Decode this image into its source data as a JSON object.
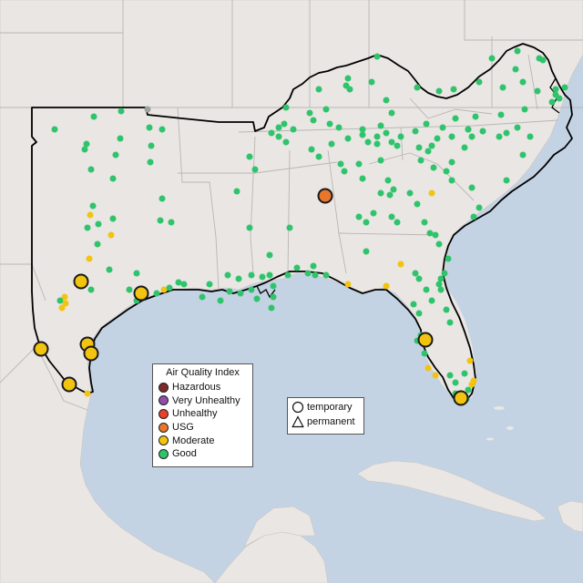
{
  "legend": {
    "title": "Air Quality Index",
    "categories": [
      {
        "label": "Hazardous",
        "color": "#7e2a2a"
      },
      {
        "label": "Very Unhealthy",
        "color": "#8f4fa8"
      },
      {
        "label": "Unhealthy",
        "color": "#e8412c"
      },
      {
        "label": "USG",
        "color": "#e8762c"
      },
      {
        "label": "Moderate",
        "color": "#f2c40f"
      },
      {
        "label": "Good",
        "color": "#2fc46c"
      }
    ]
  },
  "shape_legend": {
    "items": [
      {
        "label": "temporary",
        "shape": "circle-icon"
      },
      {
        "label": "permanent",
        "shape": "triangle-icon"
      }
    ]
  },
  "colors": {
    "water": "#c4d3e3",
    "land": "#e9e6e3",
    "region_outline": "#000000",
    "state_border": "#b9b6b3"
  }
}
